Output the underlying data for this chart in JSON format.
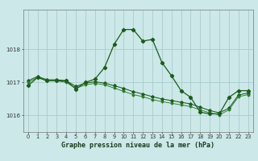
{
  "title": "Graphe pression niveau de la mer (hPa)",
  "background_color": "#cce8e8",
  "grid_color": "#aacccc",
  "line_color_dark": "#1a5c1a",
  "line_color_mid": "#2d7a2d",
  "x_ticks": [
    0,
    1,
    2,
    3,
    4,
    5,
    6,
    7,
    8,
    9,
    10,
    11,
    12,
    13,
    14,
    15,
    16,
    17,
    18,
    19,
    20,
    21,
    22,
    23
  ],
  "ylim": [
    1015.5,
    1019.2
  ],
  "yticks": [
    1016,
    1017,
    1018
  ],
  "s1": [
    1016.9,
    1017.15,
    1017.05,
    1017.05,
    1017.05,
    1016.8,
    1017.0,
    1017.1,
    1017.45,
    1018.15,
    1018.6,
    1018.6,
    1018.25,
    1018.3,
    1017.6,
    1017.2,
    1016.75,
    1016.55,
    1016.1,
    1016.05,
    1016.05,
    1016.55,
    1016.75,
    1016.75
  ],
  "s2": [
    1017.05,
    1017.18,
    1017.08,
    1017.08,
    1017.05,
    1016.88,
    1016.98,
    1017.02,
    1016.98,
    1016.9,
    1016.82,
    1016.72,
    1016.65,
    1016.57,
    1016.5,
    1016.45,
    1016.4,
    1016.35,
    1016.25,
    1016.15,
    1016.08,
    1016.22,
    1016.62,
    1016.68
  ],
  "s3": [
    1017.0,
    1017.15,
    1017.05,
    1017.05,
    1017.0,
    1016.82,
    1016.93,
    1016.97,
    1016.93,
    1016.83,
    1016.73,
    1016.63,
    1016.57,
    1016.48,
    1016.42,
    1016.37,
    1016.32,
    1016.27,
    1016.17,
    1016.08,
    1016.02,
    1016.17,
    1016.57,
    1016.63
  ],
  "title_fontsize": 6.0,
  "tick_fontsize": 4.8
}
